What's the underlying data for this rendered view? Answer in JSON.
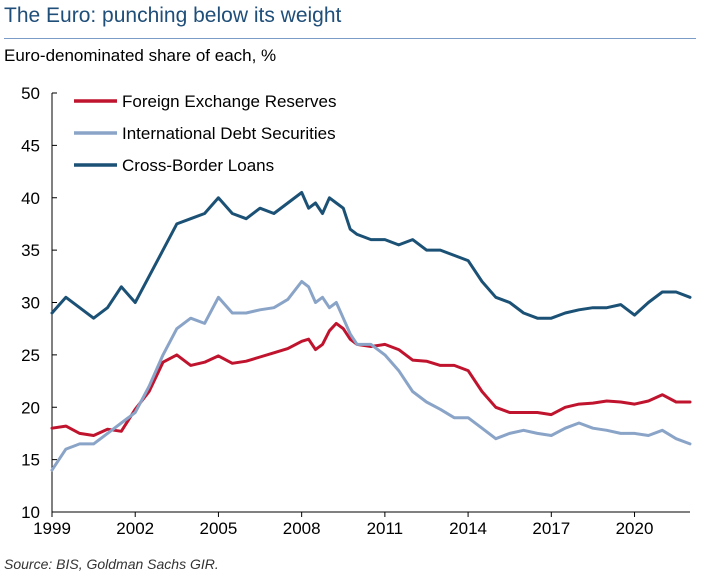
{
  "header": {
    "title": "The Euro: punching below its weight",
    "subtitle": "Euro-denominated share of each, %"
  },
  "footer": {
    "source": "Source: BIS, Goldman Sachs GIR."
  },
  "chart_data": {
    "type": "line",
    "title": "The Euro: punching below its weight",
    "subtitle": "Euro-denominated share of each, %",
    "xlabel": "",
    "ylabel": "",
    "xlim": [
      1999,
      2022
    ],
    "ylim": [
      10,
      50
    ],
    "x_ticks": [
      "1999",
      "2002",
      "2005",
      "2008",
      "2011",
      "2014",
      "2017",
      "2020"
    ],
    "y_ticks": [
      "10",
      "15",
      "20",
      "25",
      "30",
      "35",
      "40",
      "45",
      "50"
    ],
    "grid": false,
    "legend": "top-left",
    "series": [
      {
        "name": "Foreign Exchange Reserves",
        "color": "#c0142e",
        "x": [
          1999,
          1999.5,
          2000,
          2000.5,
          2001,
          2001.5,
          2002,
          2002.5,
          2003,
          2003.5,
          2004,
          2004.5,
          2005,
          2005.5,
          2006,
          2006.5,
          2007,
          2007.5,
          2008,
          2008.25,
          2008.5,
          2008.75,
          2009,
          2009.25,
          2009.5,
          2009.75,
          2010,
          2010.5,
          2011,
          2011.5,
          2012,
          2012.5,
          2013,
          2013.5,
          2014,
          2014.5,
          2015,
          2015.5,
          2016,
          2016.5,
          2017,
          2017.5,
          2018,
          2018.5,
          2019,
          2019.5,
          2020,
          2020.5,
          2021,
          2021.5,
          2022
        ],
        "values": [
          18.0,
          18.2,
          17.5,
          17.3,
          17.9,
          17.7,
          19.8,
          21.5,
          24.3,
          25.0,
          24.0,
          24.3,
          24.9,
          24.2,
          24.4,
          24.8,
          25.2,
          25.6,
          26.3,
          26.5,
          25.5,
          26.0,
          27.3,
          28.0,
          27.5,
          26.5,
          26.0,
          25.8,
          26.0,
          25.5,
          24.5,
          24.4,
          24.0,
          24.0,
          23.5,
          21.5,
          20.0,
          19.5,
          19.5,
          19.5,
          19.3,
          20.0,
          20.3,
          20.4,
          20.6,
          20.5,
          20.3,
          20.6,
          21.2,
          20.5,
          20.5
        ]
      },
      {
        "name": "International Debt Securities",
        "color": "#8aa4c8",
        "x": [
          1999,
          1999.5,
          2000,
          2000.5,
          2001,
          2001.5,
          2002,
          2002.5,
          2003,
          2003.5,
          2004,
          2004.5,
          2005,
          2005.5,
          2006,
          2006.5,
          2007,
          2007.5,
          2008,
          2008.25,
          2008.5,
          2008.75,
          2009,
          2009.25,
          2009.5,
          2009.75,
          2010,
          2010.5,
          2011,
          2011.5,
          2012,
          2012.5,
          2013,
          2013.5,
          2014,
          2014.5,
          2015,
          2015.5,
          2016,
          2016.5,
          2017,
          2017.5,
          2018,
          2018.5,
          2019,
          2019.5,
          2020,
          2020.5,
          2021,
          2021.5,
          2022
        ],
        "values": [
          14.0,
          16.0,
          16.5,
          16.5,
          17.5,
          18.5,
          19.5,
          22.0,
          25.0,
          27.5,
          28.5,
          28.0,
          30.5,
          29.0,
          29.0,
          29.3,
          29.5,
          30.3,
          32.0,
          31.5,
          30.0,
          30.5,
          29.5,
          30.0,
          28.5,
          27.0,
          26.0,
          26.0,
          25.0,
          23.5,
          21.5,
          20.5,
          19.8,
          19.0,
          19.0,
          18.0,
          17.0,
          17.5,
          17.8,
          17.5,
          17.3,
          18.0,
          18.5,
          18.0,
          17.8,
          17.5,
          17.5,
          17.3,
          17.8,
          17.0,
          16.5
        ]
      },
      {
        "name": "Cross-Border Loans",
        "color": "#1c5176",
        "x": [
          1999,
          1999.5,
          2000,
          2000.5,
          2001,
          2001.5,
          2002,
          2002.5,
          2003,
          2003.5,
          2004,
          2004.5,
          2005,
          2005.5,
          2006,
          2006.5,
          2007,
          2007.5,
          2008,
          2008.25,
          2008.5,
          2008.75,
          2009,
          2009.25,
          2009.5,
          2009.75,
          2010,
          2010.5,
          2011,
          2011.5,
          2012,
          2012.5,
          2013,
          2013.5,
          2014,
          2014.5,
          2015,
          2015.5,
          2016,
          2016.5,
          2017,
          2017.5,
          2018,
          2018.5,
          2019,
          2019.5,
          2020,
          2020.5,
          2021,
          2021.5,
          2022
        ],
        "values": [
          29.0,
          30.5,
          29.5,
          28.5,
          29.5,
          31.5,
          30.0,
          32.5,
          35.0,
          37.5,
          38.0,
          38.5,
          40.0,
          38.5,
          38.0,
          39.0,
          38.5,
          39.5,
          40.5,
          39.0,
          39.5,
          38.5,
          40.0,
          39.5,
          39.0,
          37.0,
          36.5,
          36.0,
          36.0,
          35.5,
          36.0,
          35.0,
          35.0,
          34.5,
          34.0,
          32.0,
          30.5,
          30.0,
          29.0,
          28.5,
          28.5,
          29.0,
          29.3,
          29.5,
          29.5,
          29.8,
          28.8,
          30.0,
          31.0,
          31.0,
          30.5
        ]
      }
    ]
  }
}
